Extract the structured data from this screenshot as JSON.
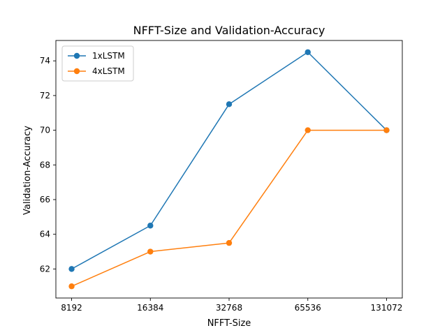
{
  "chart_data": {
    "type": "line",
    "title": "NFFT-Size and Validation-Accuracy",
    "xlabel": "NFFT-Size",
    "ylabel": "Validation-Accuracy",
    "categories": [
      "8192",
      "16384",
      "32768",
      "65536",
      "131072"
    ],
    "yticks": [
      62,
      64,
      66,
      68,
      70,
      72,
      74
    ],
    "ylim": [
      60.325,
      75.175
    ],
    "grid": false,
    "legend_position": "upper-left",
    "series": [
      {
        "name": "1xLSTM",
        "color": "#1f77b4",
        "values": [
          62,
          64.5,
          71.5,
          74.5,
          70
        ]
      },
      {
        "name": "4xLSTM",
        "color": "#ff7f0e",
        "values": [
          61,
          63,
          63.5,
          70,
          70
        ]
      }
    ]
  }
}
